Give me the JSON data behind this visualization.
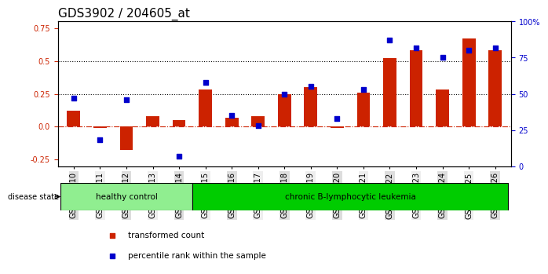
{
  "title": "GDS3902 / 204605_at",
  "samples": [
    "GSM658010",
    "GSM658011",
    "GSM658012",
    "GSM658013",
    "GSM658014",
    "GSM658015",
    "GSM658016",
    "GSM658017",
    "GSM658018",
    "GSM658019",
    "GSM658020",
    "GSM658021",
    "GSM658022",
    "GSM658023",
    "GSM658024",
    "GSM658025",
    "GSM658026"
  ],
  "bar_values": [
    0.12,
    -0.01,
    -0.18,
    0.08,
    0.05,
    0.28,
    0.07,
    0.08,
    0.25,
    0.3,
    -0.01,
    0.26,
    0.52,
    0.58,
    0.28,
    0.67,
    0.58
  ],
  "scatter_values": [
    0.47,
    0.18,
    0.46,
    null,
    0.07,
    0.58,
    0.35,
    0.28,
    0.5,
    0.55,
    0.33,
    0.53,
    0.87,
    0.82,
    0.75,
    0.8,
    0.82
  ],
  "healthy_count": 5,
  "disease_groups": [
    {
      "label": "healthy control",
      "color": "#90EE90",
      "start": 0,
      "end": 5
    },
    {
      "label": "chronic B-lymphocytic leukemia",
      "color": "#00CC00",
      "start": 5,
      "end": 17
    }
  ],
  "bar_color": "#CC2200",
  "scatter_color": "#0000CC",
  "ylim_left": [
    -0.3,
    0.8
  ],
  "ylim_right": [
    0,
    100
  ],
  "yticks_left": [
    -0.25,
    0.0,
    0.25,
    0.5,
    0.75
  ],
  "yticks_right": [
    0,
    25,
    50,
    75,
    100
  ],
  "ytick_labels_right": [
    "0",
    "25",
    "50",
    "75",
    "100%"
  ],
  "hline_y": [
    0.25,
    0.5
  ],
  "zero_line_y": 0.0,
  "disease_state_label": "disease state",
  "legend_items": [
    {
      "label": "transformed count",
      "color": "#CC2200",
      "marker": "s"
    },
    {
      "label": "percentile rank within the sample",
      "color": "#0000CC",
      "marker": "s"
    }
  ],
  "bg_color": "#FFFFFF",
  "plot_bg_color": "#FFFFFF",
  "title_fontsize": 11,
  "tick_fontsize": 7,
  "label_fontsize": 8
}
